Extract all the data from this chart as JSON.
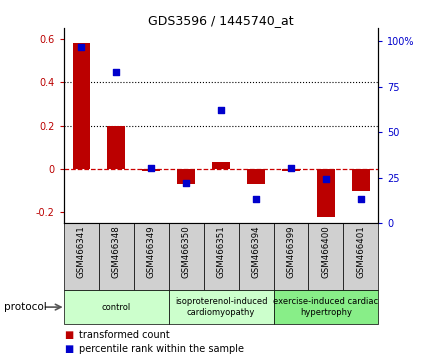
{
  "title": "GDS3596 / 1445740_at",
  "samples": [
    "GSM466341",
    "GSM466348",
    "GSM466349",
    "GSM466350",
    "GSM466351",
    "GSM466394",
    "GSM466399",
    "GSM466400",
    "GSM466401"
  ],
  "transformed_count": [
    0.58,
    0.2,
    -0.01,
    -0.07,
    0.03,
    -0.07,
    -0.01,
    -0.22,
    -0.1
  ],
  "percentile_rank": [
    97,
    83,
    30,
    22,
    62,
    13,
    30,
    24,
    13
  ],
  "ylim_left": [
    -0.25,
    0.65
  ],
  "ylim_right": [
    0,
    107
  ],
  "yticks_left": [
    -0.2,
    0.0,
    0.2,
    0.4,
    0.6
  ],
  "yticks_right": [
    0,
    25,
    50,
    75,
    100
  ],
  "bar_color": "#bb0000",
  "dot_color": "#0000cc",
  "dashed_line_color": "#cc0000",
  "bg_color": "#ffffff",
  "groups": [
    {
      "label": "control",
      "start": 0,
      "end": 3,
      "color": "#ccffcc"
    },
    {
      "label": "isoproterenol-induced\ncardiomyopathy",
      "start": 3,
      "end": 6,
      "color": "#ccffcc"
    },
    {
      "label": "exercise-induced cardiac\nhypertrophy",
      "start": 6,
      "end": 9,
      "color": "#88ee88"
    }
  ],
  "protocol_label": "protocol",
  "legend_bar_label": "transformed count",
  "legend_dot_label": "percentile rank within the sample"
}
